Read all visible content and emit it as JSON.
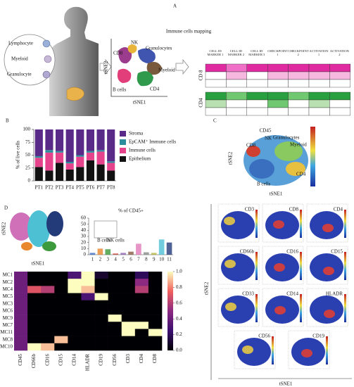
{
  "panel_labels": [
    "A",
    "B",
    "C",
    "D"
  ],
  "panel_a": {
    "cell_types": [
      "Lymphocyte",
      "Myeloid",
      "Granulocyte"
    ],
    "title": "Immune cells mapping",
    "clusters": [
      "NK",
      "CD8",
      "Granulocytes",
      "Myeloid",
      "B cells",
      "CD4"
    ],
    "x_label": "tSNE1",
    "y_label": "tSNE2",
    "table_headers": [
      "CELL ID MARKER 1",
      "CELL ID MARKER 2",
      "CELL ID MARKER 3",
      "CHECKPOINT 1",
      "CHECKPOINT 2",
      "ACTIVATION 1",
      "ACTIVATION 2"
    ],
    "row_labels": [
      "CD 8",
      "CD4"
    ]
  },
  "panel_c": {
    "title": "CD45",
    "clusters": [
      "NK",
      "Granulocytes",
      "CD8",
      "Myeloid",
      "CD4",
      "B cells"
    ],
    "x_label": "tSNE1",
    "y_label": "tSNE2",
    "markers": [
      "CD3",
      "CD8",
      "CD4",
      "CD66b",
      "CD16",
      "CD15",
      "CD33",
      "CD14",
      "HLADR",
      "CD56",
      "CD19"
    ]
  },
  "panel_d": {
    "x_label": "tSNE1",
    "y_label": "tSNE2",
    "inset_labels": [
      "B cells",
      "NK cells"
    ]
  },
  "chart_data": [
    {
      "type": "stacked_bar",
      "y_label": "% of live cells",
      "categories": [
        "PT1",
        "PT2",
        "PT3",
        "PT4",
        "PT5",
        "PT6",
        "PT7",
        "PT8"
      ],
      "series": [
        {
          "name": "Epithelium",
          "color": "#111111",
          "values": [
            27,
            20,
            35,
            22,
            27,
            40,
            32,
            20
          ]
        },
        {
          "name": "Immune cells",
          "color": "#e5438c",
          "values": [
            18,
            35,
            20,
            12,
            20,
            15,
            25,
            15
          ]
        },
        {
          "name": "EpCAM⁺ Immune cells",
          "color": "#2b8e9c",
          "values": [
            3,
            5,
            3,
            3,
            3,
            3,
            3,
            3
          ]
        },
        {
          "name": "Stroma",
          "color": "#5a2a88",
          "values": [
            52,
            40,
            42,
            63,
            50,
            42,
            40,
            62
          ]
        }
      ],
      "ylim": [
        0,
        100
      ],
      "yticks": [
        0,
        25,
        50,
        75,
        100
      ]
    },
    {
      "type": "bar",
      "title": "% of CD45+",
      "categories": [
        "1",
        "2",
        "3",
        "4",
        "5",
        "6",
        "7",
        "8",
        "9",
        "10",
        "11"
      ],
      "values": [
        3,
        10,
        9,
        2,
        3,
        5,
        18,
        4,
        3,
        25,
        20
      ],
      "colors": [
        "#3b6fc4",
        "#e8872e",
        "#3c9a3c",
        "#c9423a",
        "#8c62b5",
        "#8a5a44",
        "#e07ab8",
        "#8a8a8a",
        "#b7b83a",
        "#4ec0d4",
        "#243b7a"
      ],
      "ylim": [
        0,
        60
      ],
      "yticks": [
        0,
        10,
        20,
        30,
        40,
        50,
        60
      ]
    },
    {
      "type": "heatmap",
      "rows": [
        "MC1",
        "MC2",
        "MC4",
        "MC5",
        "MC3",
        "MC6",
        "MC9",
        "MC7",
        "MC11",
        "MC8",
        "MC10"
      ],
      "columns": [
        "CD45",
        "CD66b",
        "CD16",
        "CD15",
        "CD14",
        "HLADR",
        "CD19",
        "CD56",
        "CD3",
        "CD4",
        "CD8"
      ],
      "values": [
        [
          0.4,
          0,
          0,
          0,
          0.3,
          1.0,
          0.1,
          0,
          0,
          0.2,
          0
        ],
        [
          0.4,
          0,
          0,
          0,
          1.0,
          1.0,
          0,
          0,
          0,
          0.5,
          0
        ],
        [
          0.4,
          0.7,
          0.6,
          0,
          1.0,
          0.9,
          0,
          0,
          0,
          0.6,
          0
        ],
        [
          0.4,
          0,
          0,
          0,
          0,
          0.3,
          1.0,
          0,
          0,
          0,
          0
        ],
        [
          0.4,
          0,
          0,
          0,
          0,
          0,
          0,
          0,
          0,
          0,
          0
        ],
        [
          0.4,
          0,
          0,
          0,
          0,
          0,
          0,
          0,
          0,
          0,
          0
        ],
        [
          0.4,
          0,
          0,
          0,
          0,
          0,
          0,
          1.0,
          0,
          0,
          0
        ],
        [
          0.4,
          0,
          0,
          0,
          0,
          0,
          0,
          0,
          1.0,
          1.0,
          0
        ],
        [
          0.4,
          0,
          0,
          0,
          0,
          0,
          0,
          0,
          1.0,
          0,
          1.0
        ],
        [
          0.4,
          0,
          0,
          0.9,
          0,
          0,
          0,
          0,
          0,
          0,
          0
        ],
        [
          0.4,
          1.0,
          0.9,
          0,
          0,
          0,
          0,
          0,
          0,
          0,
          0
        ]
      ],
      "clim": [
        0,
        1
      ],
      "cticks": [
        {
          "value": 0,
          "label": "0.0"
        },
        {
          "value": 0.2,
          "label": "0.2"
        },
        {
          "value": 0.4,
          "label": "0.4"
        },
        {
          "value": 0.6,
          "label": "0.6"
        },
        {
          "value": 0.8,
          "label": "0.8"
        },
        {
          "value": 1,
          "label": "1.0"
        }
      ]
    }
  ]
}
